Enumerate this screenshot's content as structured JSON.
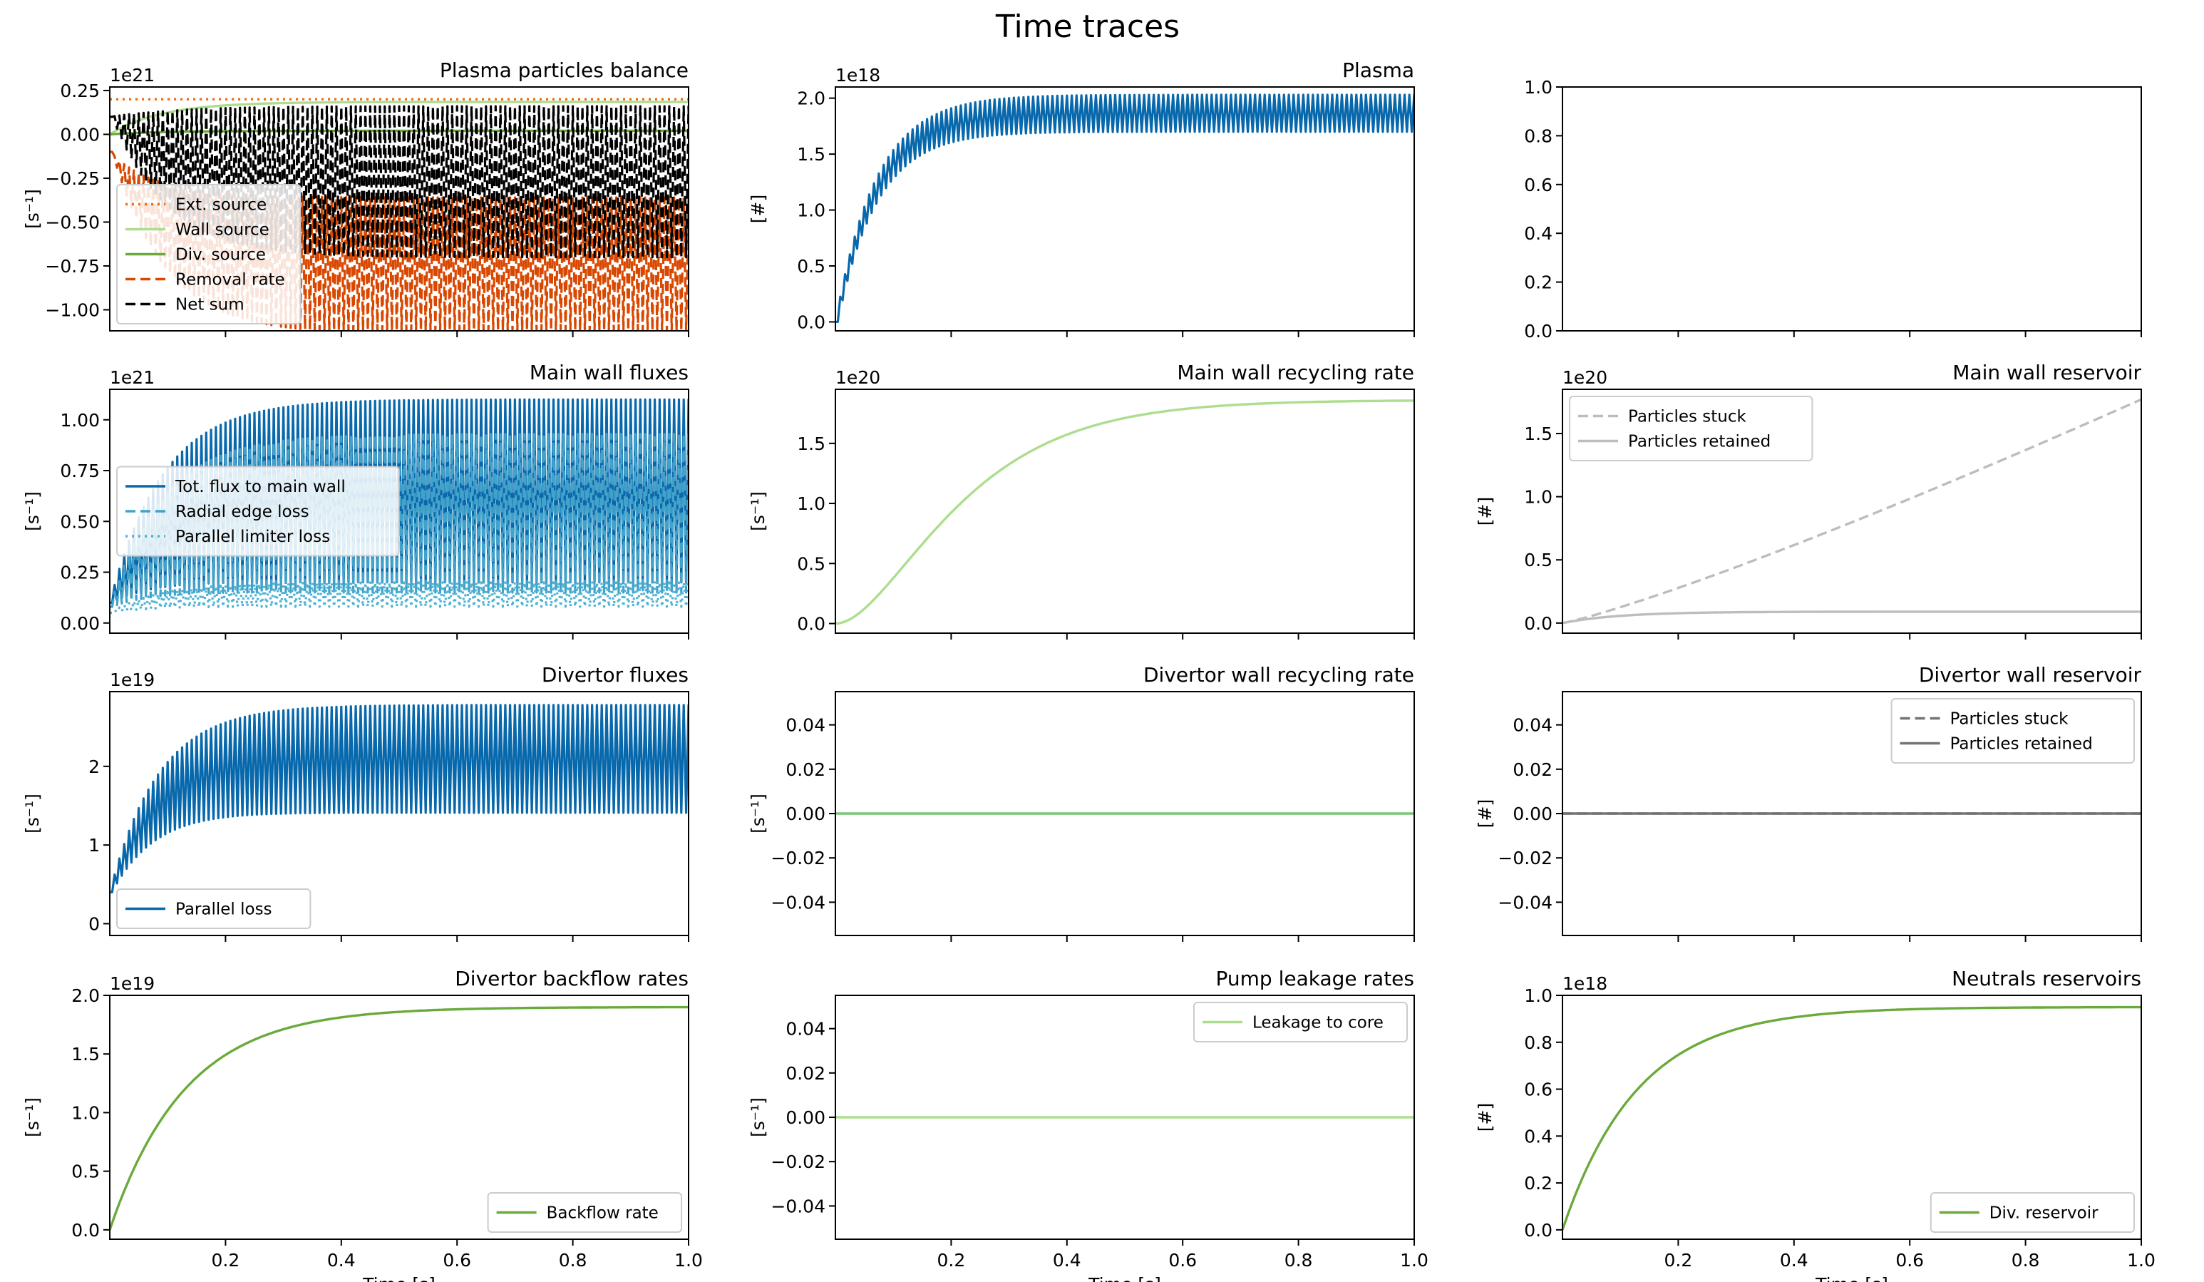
{
  "figure": {
    "title": "Time traces"
  },
  "colors": {
    "blue": "#0868ac",
    "lightblue": "#43a2ca",
    "skyblue": "#7bccc4",
    "orange": "#f16913",
    "red": "#d94801",
    "lightgreen": "#addd8e",
    "green": "#78c679",
    "darkgreen": "#6aaa3a",
    "black": "#000000",
    "lightgray": "#bdbdbd",
    "gray": "#737373"
  },
  "chart_data": [
    {
      "id": "plasma-particles-balance",
      "type": "line",
      "title": "Plasma particles balance",
      "ylabel": "[s⁻¹]",
      "offset_text": "1e21",
      "xlim": [
        0,
        1.0
      ],
      "ylim": [
        -1.12,
        0.27
      ],
      "yticks": [
        0.25,
        0.0,
        -0.25,
        -0.5,
        -0.75,
        -1.0
      ],
      "ytick_labels": [
        "0.25",
        "0.00",
        "−0.25",
        "−0.50",
        "−0.75",
        "−1.00"
      ],
      "xticks": [
        0.2,
        0.4,
        0.6,
        0.8,
        1.0
      ],
      "xtick_labels": [],
      "legend": {
        "loc": "lower-left"
      },
      "series": [
        {
          "name": "Ext. source",
          "color": "#f16913",
          "style": "dotted",
          "kind": "const",
          "value": 0.2
        },
        {
          "name": "Wall source",
          "color": "#addd8e",
          "style": "solid",
          "kind": "rise",
          "start": 0.0,
          "amp": 0.185,
          "tau": 0.09
        },
        {
          "name": "Div. source",
          "color": "#6aaa3a",
          "style": "solid",
          "kind": "rise",
          "start": 0.0,
          "amp": 0.02,
          "tau": 0.09
        },
        {
          "name": "Removal rate",
          "color": "#d94801",
          "style": "dashed",
          "kind": "osc",
          "start": -0.1,
          "amp": -0.26,
          "tau": 0.08,
          "hi_off": 0.0,
          "lo_off": -0.78,
          "lo_min": -1.12
        },
        {
          "name": "Net sum",
          "color": "#000000",
          "style": "dashed",
          "kind": "osc",
          "start": 0.1,
          "amp": -0.08,
          "tau": 0.08,
          "hi_off": 0.14,
          "lo_off": -0.72,
          "lo_min": -1.05
        }
      ]
    },
    {
      "id": "plasma",
      "type": "line",
      "title": "Plasma",
      "ylabel": "[#]",
      "offset_text": "1e18",
      "xlim": [
        0,
        1.0
      ],
      "ylim": [
        -0.08,
        2.1
      ],
      "yticks": [
        0.0,
        0.5,
        1.0,
        1.5,
        2.0
      ],
      "ytick_labels": [
        "0.0",
        "0.5",
        "1.0",
        "1.5",
        "2.0"
      ],
      "xticks": [
        0.2,
        0.4,
        0.6,
        0.8,
        1.0
      ],
      "xtick_labels": [],
      "legend": null,
      "series": [
        {
          "name": "",
          "color": "#0868ac",
          "style": "solid",
          "kind": "osc",
          "start": 0.0,
          "amp": 1.9,
          "tau": 0.07,
          "hi_off": 0.13,
          "lo_off": -0.2,
          "lo_min": 0.0
        }
      ]
    },
    {
      "id": "empty-panel",
      "type": "line",
      "title": "",
      "ylabel": "",
      "offset_text": "",
      "xlim": [
        0,
        1.0
      ],
      "ylim": [
        0.0,
        1.0
      ],
      "yticks": [
        0.0,
        0.2,
        0.4,
        0.6,
        0.8,
        1.0
      ],
      "ytick_labels": [
        "0.0",
        "0.2",
        "0.4",
        "0.6",
        "0.8",
        "1.0"
      ],
      "xticks": [
        0.2,
        0.4,
        0.6,
        0.8,
        1.0
      ],
      "xtick_labels": [],
      "legend": null,
      "series": []
    },
    {
      "id": "main-wall-fluxes",
      "type": "line",
      "title": "Main wall fluxes",
      "ylabel": "[s⁻¹]",
      "offset_text": "1e21",
      "xlim": [
        0,
        1.0
      ],
      "ylim": [
        -0.05,
        1.15
      ],
      "yticks": [
        0.0,
        0.25,
        0.5,
        0.75,
        1.0
      ],
      "ytick_labels": [
        "0.00",
        "0.25",
        "0.50",
        "0.75",
        "1.00"
      ],
      "xticks": [
        0.2,
        0.4,
        0.6,
        0.8,
        1.0
      ],
      "xtick_labels": [],
      "legend": {
        "loc": "center-left"
      },
      "series": [
        {
          "name": "Tot. flux to main wall",
          "color": "#0868ac",
          "style": "solid",
          "kind": "osc",
          "start": 0.1,
          "amp": 0.25,
          "tau": 0.08,
          "hi_off": 0.75,
          "lo_off": -0.15,
          "lo_min": 0.06
        },
        {
          "name": "Radial edge loss",
          "color": "#43a2ca",
          "style": "dashed",
          "kind": "osc",
          "start": 0.08,
          "amp": 0.18,
          "tau": 0.08,
          "hi_off": 0.67,
          "lo_off": -0.11,
          "lo_min": 0.04
        },
        {
          "name": "Parallel limiter loss",
          "color": "#4eb3d3",
          "style": "dotted",
          "kind": "osc",
          "start": 0.05,
          "amp": 0.08,
          "tau": 0.08,
          "hi_off": 0.07,
          "lo_off": -0.05,
          "lo_min": 0.03
        }
      ]
    },
    {
      "id": "main-wall-recycling-rate",
      "type": "line",
      "title": "Main wall recycling rate",
      "ylabel": "[s⁻¹]",
      "offset_text": "1e20",
      "xlim": [
        0,
        1.0
      ],
      "ylim": [
        -0.08,
        1.95
      ],
      "yticks": [
        0.0,
        0.5,
        1.0,
        1.5
      ],
      "ytick_labels": [
        "0.0",
        "0.5",
        "1.0",
        "1.5"
      ],
      "xticks": [
        0.2,
        0.4,
        0.6,
        0.8,
        1.0
      ],
      "xtick_labels": [],
      "legend": null,
      "series": [
        {
          "name": "",
          "color": "#addd8e",
          "style": "solid",
          "kind": "sigmoid",
          "start": 0.0,
          "amp": 1.86,
          "tau": 0.12
        }
      ]
    },
    {
      "id": "main-wall-reservoir",
      "type": "line",
      "title": "Main wall reservoir",
      "ylabel": "[#]",
      "offset_text": "1e20",
      "xlim": [
        0,
        1.0
      ],
      "ylim": [
        -0.08,
        1.85
      ],
      "yticks": [
        0.0,
        0.5,
        1.0,
        1.5
      ],
      "ytick_labels": [
        "0.0",
        "0.5",
        "1.0",
        "1.5"
      ],
      "xticks": [
        0.2,
        0.4,
        0.6,
        0.8,
        1.0
      ],
      "xtick_labels": [],
      "legend": {
        "loc": "upper-left"
      },
      "series": [
        {
          "name": "Particles stuck",
          "color": "#bdbdbd",
          "style": "dashed",
          "kind": "ramp",
          "start": 0.0,
          "amp": 1.77,
          "power": 1.15
        },
        {
          "name": "Particles retained",
          "color": "#bdbdbd",
          "style": "solid",
          "kind": "rise",
          "start": 0.0,
          "amp": 0.09,
          "tau": 0.1
        }
      ]
    },
    {
      "id": "divertor-fluxes",
      "type": "line",
      "title": "Divertor fluxes",
      "ylabel": "[s⁻¹]",
      "offset_text": "1e19",
      "xlim": [
        0,
        1.0
      ],
      "ylim": [
        -0.15,
        2.95
      ],
      "yticks": [
        0,
        1,
        2
      ],
      "ytick_labels": [
        "0",
        "1",
        "2"
      ],
      "xticks": [
        0.2,
        0.4,
        0.6,
        0.8,
        1.0
      ],
      "xtick_labels": [],
      "legend": {
        "loc": "lower-left"
      },
      "series": [
        {
          "name": "Parallel loss",
          "color": "#0868ac",
          "style": "solid",
          "kind": "osc",
          "start": 0.4,
          "amp": 1.73,
          "tau": 0.08,
          "hi_off": 0.65,
          "lo_off": -0.72,
          "lo_min": 0.1
        }
      ]
    },
    {
      "id": "divertor-wall-recycling-rate",
      "type": "line",
      "title": "Divertor wall recycling rate",
      "ylabel": "[s⁻¹]",
      "offset_text": "",
      "xlim": [
        0,
        1.0
      ],
      "ylim": [
        -0.055,
        0.055
      ],
      "yticks": [
        0.04,
        0.02,
        0.0,
        -0.02,
        -0.04
      ],
      "ytick_labels": [
        "0.04",
        "0.02",
        "0.00",
        "−0.02",
        "−0.04"
      ],
      "xticks": [
        0.2,
        0.4,
        0.6,
        0.8,
        1.0
      ],
      "xtick_labels": [],
      "legend": null,
      "series": [
        {
          "name": "",
          "color": "#78c679",
          "style": "solid",
          "kind": "const",
          "value": 0.0
        }
      ]
    },
    {
      "id": "divertor-wall-reservoir",
      "type": "line",
      "title": "Divertor wall reservoir",
      "ylabel": "[#]",
      "offset_text": "",
      "xlim": [
        0,
        1.0
      ],
      "ylim": [
        -0.055,
        0.055
      ],
      "yticks": [
        0.04,
        0.02,
        0.0,
        -0.02,
        -0.04
      ],
      "ytick_labels": [
        "0.04",
        "0.02",
        "0.00",
        "−0.02",
        "−0.04"
      ],
      "xticks": [
        0.2,
        0.4,
        0.6,
        0.8,
        1.0
      ],
      "xtick_labels": [],
      "legend": {
        "loc": "upper-right"
      },
      "series": [
        {
          "name": "Particles stuck",
          "color": "#737373",
          "style": "dashed",
          "kind": "const",
          "value": 0.0
        },
        {
          "name": "Particles retained",
          "color": "#737373",
          "style": "solid",
          "kind": "const",
          "value": 0.0
        }
      ]
    },
    {
      "id": "divertor-backflow-rates",
      "type": "line",
      "title": "Divertor backflow rates",
      "ylabel": "[s⁻¹]",
      "offset_text": "1e19",
      "xlabel": "Time [s]",
      "xlim": [
        0,
        1.0
      ],
      "ylim": [
        -0.08,
        2.0
      ],
      "yticks": [
        0.0,
        0.5,
        1.0,
        1.5,
        2.0
      ],
      "ytick_labels": [
        "0.0",
        "0.5",
        "1.0",
        "1.5",
        "2.0"
      ],
      "xticks": [
        0.2,
        0.4,
        0.6,
        0.8,
        1.0
      ],
      "xtick_labels": [
        "0.2",
        "0.4",
        "0.6",
        "0.8",
        "1.0"
      ],
      "legend": {
        "loc": "lower-right"
      },
      "series": [
        {
          "name": "Backflow rate",
          "color": "#6aaa3a",
          "style": "solid",
          "kind": "rise",
          "start": 0.0,
          "amp": 1.9,
          "tau": 0.13
        }
      ]
    },
    {
      "id": "pump-leakage-rates",
      "type": "line",
      "title": "Pump leakage rates",
      "ylabel": "[s⁻¹]",
      "offset_text": "",
      "xlabel": "Time [s]",
      "xlim": [
        0,
        1.0
      ],
      "ylim": [
        -0.055,
        0.055
      ],
      "yticks": [
        0.04,
        0.02,
        0.0,
        -0.02,
        -0.04
      ],
      "ytick_labels": [
        "0.04",
        "0.02",
        "0.00",
        "−0.02",
        "−0.04"
      ],
      "xticks": [
        0.2,
        0.4,
        0.6,
        0.8,
        1.0
      ],
      "xtick_labels": [
        "0.2",
        "0.4",
        "0.6",
        "0.8",
        "1.0"
      ],
      "legend": {
        "loc": "upper-right"
      },
      "series": [
        {
          "name": "Leakage to core",
          "color": "#addd8e",
          "style": "solid",
          "kind": "const",
          "value": 0.0
        }
      ]
    },
    {
      "id": "neutrals-reservoirs",
      "type": "line",
      "title": "Neutrals reservoirs",
      "ylabel": "[#]",
      "offset_text": "1e18",
      "xlabel": "Time [s]",
      "xlim": [
        0,
        1.0
      ],
      "ylim": [
        -0.04,
        1.0
      ],
      "yticks": [
        0.0,
        0.2,
        0.4,
        0.6,
        0.8,
        1.0
      ],
      "ytick_labels": [
        "0.0",
        "0.2",
        "0.4",
        "0.6",
        "0.8",
        "1.0"
      ],
      "xticks": [
        0.2,
        0.4,
        0.6,
        0.8,
        1.0
      ],
      "xtick_labels": [
        "0.2",
        "0.4",
        "0.6",
        "0.8",
        "1.0"
      ],
      "legend": {
        "loc": "lower-right"
      },
      "series": [
        {
          "name": "Div. reservoir",
          "color": "#6aaa3a",
          "style": "solid",
          "kind": "rise",
          "start": 0.0,
          "amp": 0.95,
          "tau": 0.13
        }
      ]
    }
  ]
}
